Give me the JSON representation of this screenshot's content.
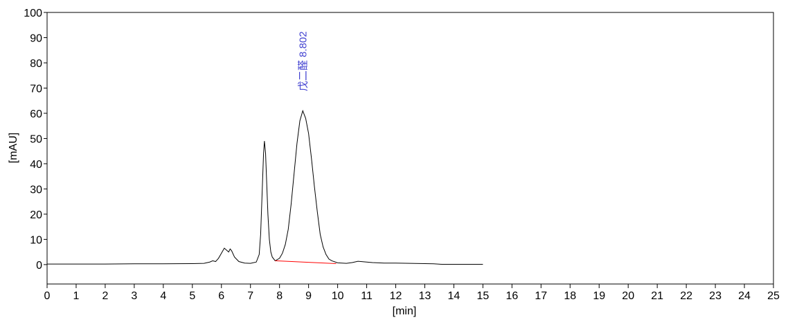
{
  "chart_data": {
    "type": "line",
    "xlabel": "[min]",
    "ylabel": "[mAU]",
    "xlim": [
      0,
      25
    ],
    "xticks": [
      0,
      1,
      2,
      3,
      4,
      5,
      6,
      7,
      8,
      9,
      10,
      11,
      12,
      13,
      14,
      15,
      16,
      17,
      18,
      19,
      20,
      21,
      22,
      23,
      24,
      25
    ],
    "ylim": [
      -7.7,
      100
    ],
    "yticks": [
      0,
      10,
      20,
      30,
      40,
      50,
      60,
      70,
      80,
      90,
      100
    ],
    "series": [
      {
        "color": "#000000",
        "x": [
          0,
          1,
          2,
          3,
          4,
          5,
          5.4,
          5.6,
          5.7,
          5.8,
          5.9,
          6.0,
          6.1,
          6.2,
          6.25,
          6.3,
          6.35,
          6.45,
          6.6,
          6.8,
          7.0,
          7.2,
          7.3,
          7.35,
          7.4,
          7.45,
          7.48,
          7.52,
          7.56,
          7.6,
          7.65,
          7.7,
          7.75,
          7.85,
          8.0,
          8.1,
          8.2,
          8.3,
          8.4,
          8.5,
          8.6,
          8.7,
          8.8,
          8.9,
          9.0,
          9.1,
          9.2,
          9.3,
          9.4,
          9.5,
          9.6,
          9.7,
          9.8,
          10.0,
          10.3,
          10.5,
          10.7,
          10.9,
          11.2,
          11.6,
          12.0,
          12.5,
          13.0,
          13.3,
          13.6,
          14.0,
          15.0
        ],
        "values": [
          0.2,
          0.2,
          0.2,
          0.3,
          0.3,
          0.4,
          0.5,
          1.0,
          1.5,
          1.2,
          2.5,
          4.5,
          6.5,
          5.5,
          5.0,
          6.2,
          5.5,
          3.0,
          1.2,
          0.6,
          0.5,
          1.0,
          4.0,
          12,
          28,
          44,
          49,
          44,
          32,
          20,
          10,
          5,
          3,
          1.5,
          2.5,
          4.5,
          8,
          14,
          24,
          36,
          48,
          57,
          61,
          58,
          52,
          42,
          31,
          21,
          12,
          7,
          4,
          2.2,
          1.5,
          0.7,
          0.5,
          0.8,
          1.3,
          1.1,
          0.8,
          0.6,
          0.6,
          0.5,
          0.4,
          0.3,
          0.1,
          0.1,
          0.1
        ]
      },
      {
        "color": "#ff0000",
        "x": [
          7.85,
          9.95
        ],
        "values": [
          1.5,
          0.4
        ]
      }
    ],
    "annotations": [
      {
        "text": "戊二醛 8.802",
        "x": 8.802
      }
    ]
  }
}
